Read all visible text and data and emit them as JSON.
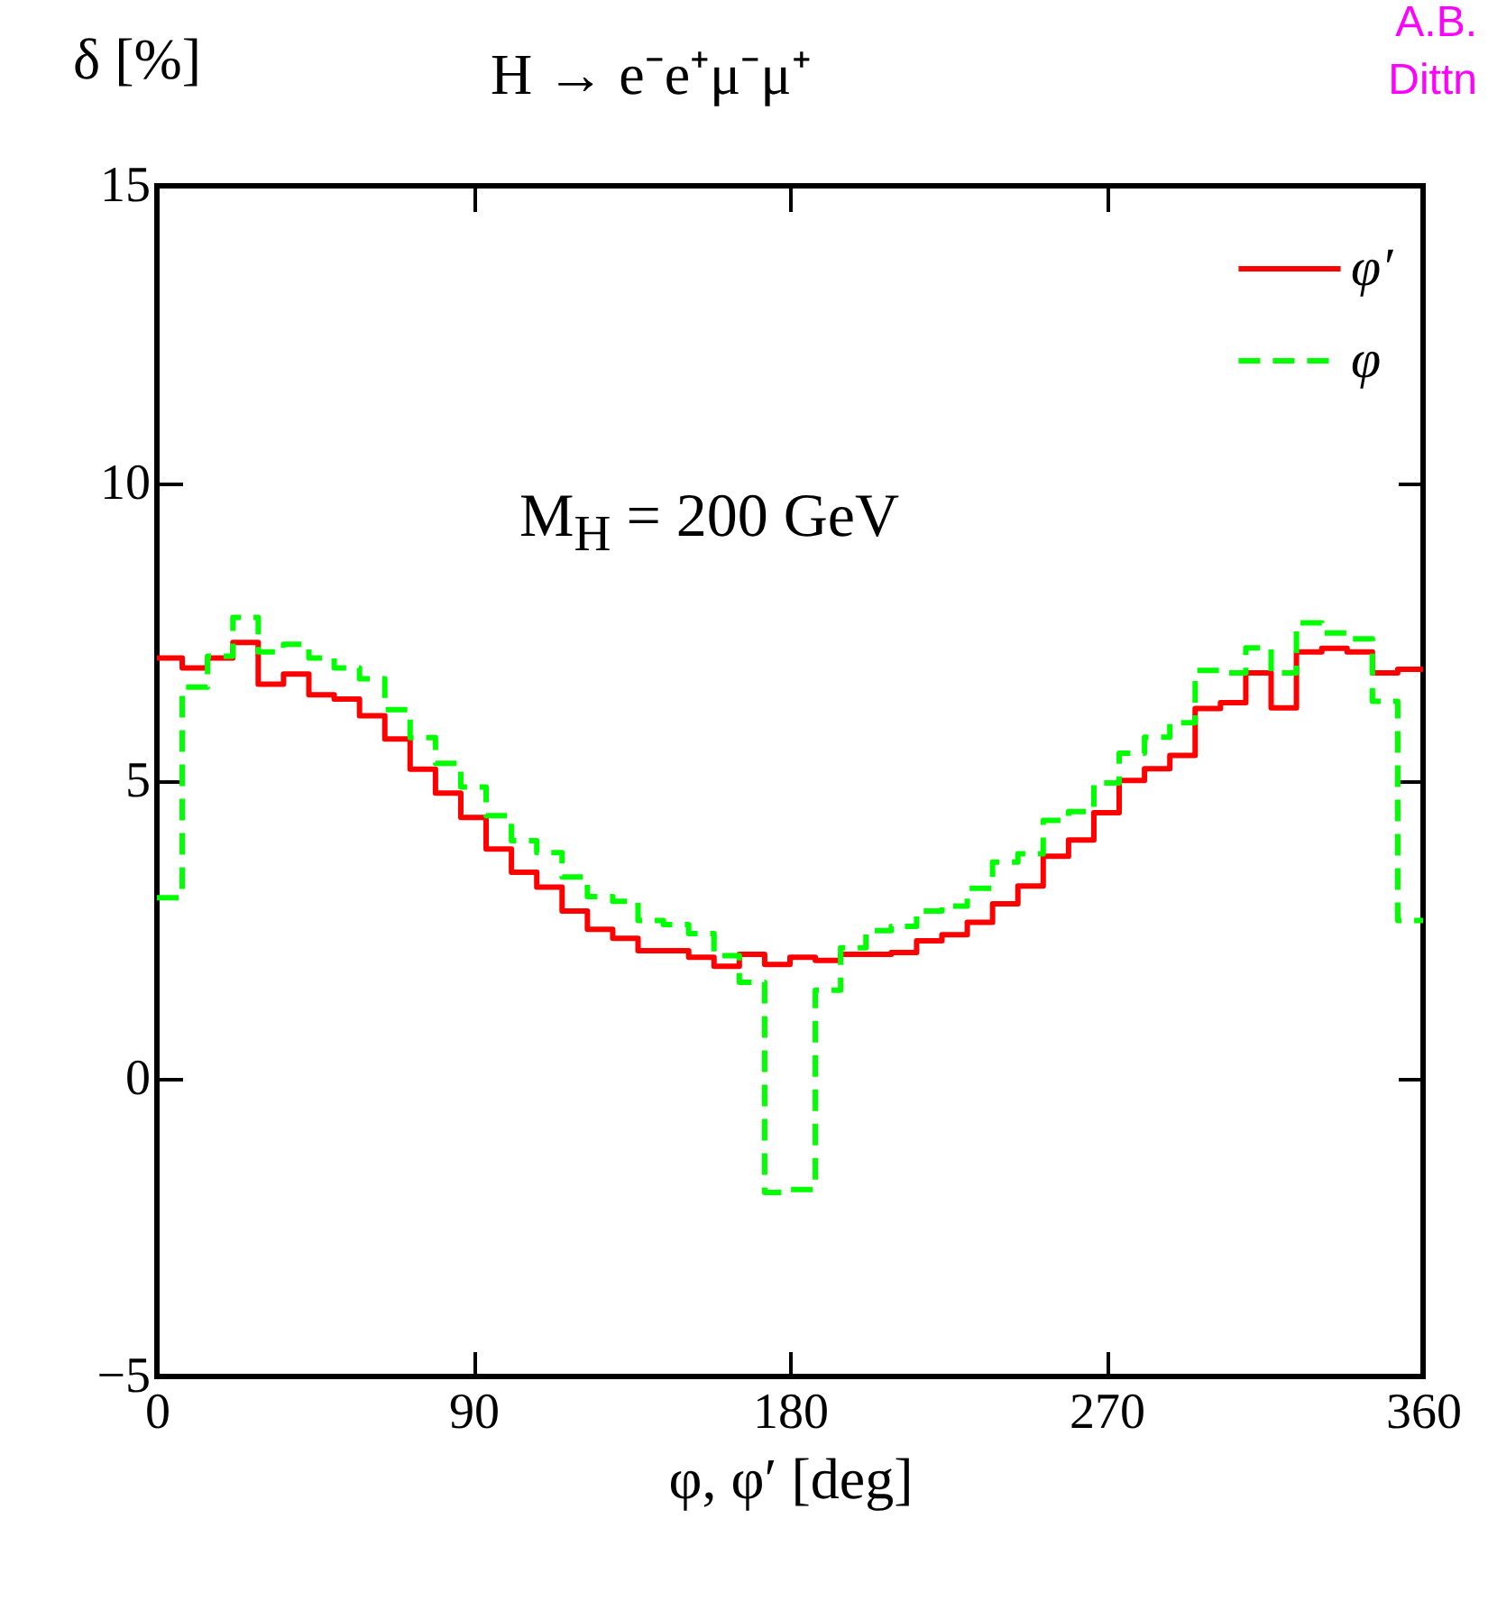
{
  "chart_data": {
    "type": "step",
    "title": "H → e⁻e⁺μ⁻μ⁺",
    "xlabel": "φ, φ′ [deg]",
    "ylabel": "δ [%]",
    "x": [
      0,
      7.2,
      14.4,
      21.6,
      28.8,
      36,
      43.2,
      50.4,
      57.6,
      64.8,
      72,
      79.2,
      86.4,
      93.6,
      100.8,
      108,
      115.2,
      122.4,
      129.6,
      136.8,
      144,
      151.2,
      158.4,
      165.6,
      172.8,
      180,
      187.2,
      194.4,
      201.6,
      208.8,
      216,
      223.2,
      230.4,
      237.6,
      244.8,
      252,
      259.2,
      266.4,
      273.6,
      280.8,
      288,
      295.2,
      302.4,
      309.6,
      316.8,
      324,
      331.2,
      338.4,
      345.6,
      352.8,
      360
    ],
    "series": [
      {
        "name": "φ′",
        "color": "#ff0000",
        "line_style": "solid",
        "values": [
          7.07,
          6.9,
          7.07,
          7.33,
          6.63,
          6.8,
          6.45,
          6.38,
          6.1,
          5.71,
          5.2,
          4.8,
          4.39,
          3.86,
          3.47,
          3.22,
          2.82,
          2.51,
          2.36,
          2.15,
          2.15,
          2.04,
          1.89,
          2.09,
          1.92,
          2.04,
          1.99,
          2.09,
          2.09,
          2.12,
          2.32,
          2.42,
          2.63,
          2.94,
          3.24,
          3.74,
          4.01,
          4.47,
          5.01,
          5.21,
          5.43,
          6.22,
          6.32,
          6.82,
          6.23,
          7.17,
          7.23,
          7.17,
          6.82,
          6.88,
          6.88
        ]
      },
      {
        "name": "φ",
        "color": "#00ff00",
        "line_style": "dashed",
        "values": [
          3.04,
          6.58,
          7.1,
          7.75,
          7.17,
          7.3,
          7.07,
          6.9,
          6.72,
          6.2,
          5.73,
          5.3,
          4.9,
          4.42,
          4.0,
          3.8,
          3.39,
          3.06,
          2.98,
          2.66,
          2.59,
          2.44,
          2.07,
          1.62,
          -1.91,
          -1.86,
          1.49,
          2.2,
          2.49,
          2.56,
          2.82,
          2.9,
          3.2,
          3.64,
          3.78,
          4.34,
          4.49,
          4.97,
          5.47,
          5.74,
          5.98,
          6.86,
          6.82,
          7.24,
          6.82,
          7.66,
          7.49,
          7.39,
          6.34,
          2.66,
          2.66
        ]
      }
    ],
    "xlim": [
      0,
      360
    ],
    "xticks": [
      0,
      90,
      180,
      270,
      360
    ],
    "ylim": [
      -5,
      15
    ],
    "yticks": [
      -5,
      0,
      5,
      10,
      15
    ],
    "legend": "top right",
    "annotations": [
      "M$_{H}$ = 200 GeV",
      "A.B.",
      "Dittn"
    ]
  }
}
